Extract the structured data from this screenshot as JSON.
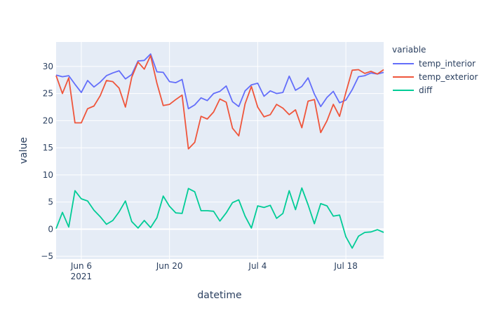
{
  "chart_data": {
    "type": "line",
    "xlabel": "datetime",
    "ylabel": "value",
    "legend_title": "variable",
    "legend_placement": "right",
    "grid": true,
    "xlim": [
      "2021-06-02",
      "2021-07-24"
    ],
    "ylim": [
      -5.5,
      34.5
    ],
    "x_ticks": [
      {
        "date": "2021-06-06",
        "label": "Jun 6",
        "sublabel": "2021"
      },
      {
        "date": "2021-06-20",
        "label": "Jun 20",
        "sublabel": ""
      },
      {
        "date": "2021-07-04",
        "label": "Jul 4",
        "sublabel": ""
      },
      {
        "date": "2021-07-18",
        "label": "Jul 18",
        "sublabel": ""
      }
    ],
    "y_ticks": [
      -5,
      0,
      5,
      10,
      15,
      20,
      25,
      30
    ],
    "x": [
      "2021-06-02",
      "2021-06-03",
      "2021-06-04",
      "2021-06-05",
      "2021-06-06",
      "2021-06-07",
      "2021-06-08",
      "2021-06-09",
      "2021-06-10",
      "2021-06-11",
      "2021-06-12",
      "2021-06-13",
      "2021-06-14",
      "2021-06-15",
      "2021-06-16",
      "2021-06-17",
      "2021-06-18",
      "2021-06-19",
      "2021-06-20",
      "2021-06-21",
      "2021-06-22",
      "2021-06-23",
      "2021-06-24",
      "2021-06-25",
      "2021-06-26",
      "2021-06-27",
      "2021-06-28",
      "2021-06-29",
      "2021-06-30",
      "2021-07-01",
      "2021-07-02",
      "2021-07-03",
      "2021-07-04",
      "2021-07-05",
      "2021-07-06",
      "2021-07-07",
      "2021-07-08",
      "2021-07-09",
      "2021-07-10",
      "2021-07-11",
      "2021-07-12",
      "2021-07-13",
      "2021-07-14",
      "2021-07-15",
      "2021-07-16",
      "2021-07-17",
      "2021-07-18",
      "2021-07-19",
      "2021-07-20",
      "2021-07-21",
      "2021-07-22",
      "2021-07-23",
      "2021-07-24"
    ],
    "series": [
      {
        "name": "temp_interior",
        "color": "#636efa",
        "values": [
          28.4,
          28.1,
          28.3,
          26.7,
          25.2,
          27.4,
          26.2,
          27.1,
          28.3,
          28.8,
          29.2,
          27.7,
          28.5,
          31.0,
          31.1,
          32.3,
          29.0,
          28.9,
          27.2,
          27.0,
          27.6,
          22.2,
          22.9,
          24.2,
          23.7,
          25.0,
          25.4,
          26.4,
          23.5,
          22.6,
          25.5,
          26.6,
          26.9,
          24.5,
          25.5,
          25.0,
          25.2,
          28.2,
          25.6,
          26.3,
          27.9,
          24.9,
          22.6,
          24.3,
          25.4,
          23.3,
          23.8,
          25.7,
          28.1,
          28.3,
          28.8,
          28.6,
          28.9
        ]
      },
      {
        "name": "temp_exterior",
        "color": "#ef553b",
        "values": [
          28.3,
          25.0,
          27.9,
          19.6,
          19.6,
          22.2,
          22.7,
          24.6,
          27.4,
          27.2,
          26.0,
          22.5,
          28.0,
          30.8,
          29.5,
          32.0,
          26.9,
          22.8,
          23.0,
          23.9,
          24.7,
          14.8,
          16.0,
          20.8,
          20.3,
          21.6,
          24.0,
          23.4,
          18.6,
          17.2,
          23.1,
          26.3,
          22.5,
          20.7,
          21.1,
          23.0,
          22.3,
          21.1,
          22.0,
          18.7,
          23.6,
          23.9,
          17.8,
          20.0,
          23.0,
          20.8,
          25.2,
          29.3,
          29.4,
          28.7,
          29.1,
          28.6,
          29.4
        ]
      },
      {
        "name": "diff",
        "color": "#00cc96",
        "values": [
          0.1,
          3.1,
          0.4,
          7.1,
          5.6,
          5.2,
          3.5,
          2.3,
          0.9,
          1.6,
          3.2,
          5.2,
          1.4,
          0.2,
          1.6,
          0.3,
          2.1,
          6.1,
          4.2,
          3.0,
          2.9,
          7.5,
          6.9,
          3.4,
          3.4,
          3.3,
          1.5,
          3.0,
          4.9,
          5.4,
          2.4,
          0.2,
          4.3,
          4.0,
          4.4,
          2.0,
          2.9,
          7.1,
          3.6,
          7.6,
          4.5,
          1.0,
          4.7,
          4.3,
          2.4,
          2.6,
          -1.4,
          -3.5,
          -1.3,
          -0.6,
          -0.5,
          -0.1,
          -0.6
        ]
      }
    ]
  }
}
